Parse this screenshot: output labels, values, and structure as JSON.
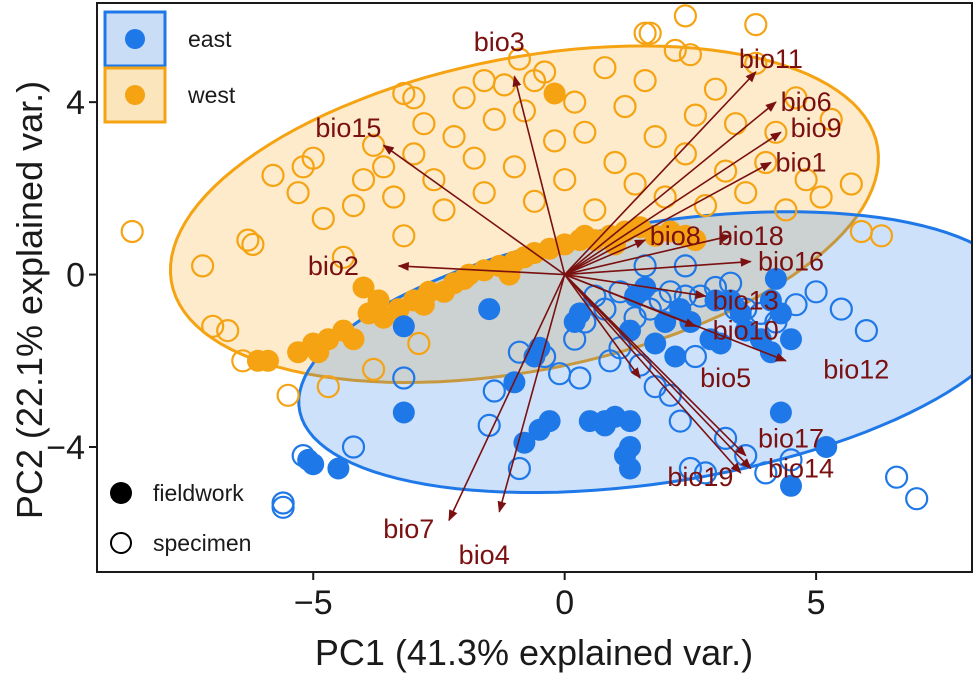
{
  "chart_data": {
    "type": "scatter",
    "subtype": "PCA biplot",
    "xlabel": "PC1 (41.3% explained var.)",
    "ylabel": "PC2 (22.1% explained var.)",
    "xlim": [
      -9.3,
      8.1
    ],
    "ylim": [
      -6.9,
      6.3
    ],
    "x_ticks": [
      {
        "value": -5,
        "label": "−5"
      },
      {
        "value": 0,
        "label": "0"
      },
      {
        "value": 5,
        "label": "5"
      }
    ],
    "y_ticks": [
      {
        "value": -4,
        "label": "−4"
      },
      {
        "value": 0,
        "label": "0"
      },
      {
        "value": 4,
        "label": "4"
      }
    ],
    "grid": false,
    "legend": {
      "placement": "top-left",
      "groups": [
        {
          "name": "east",
          "color": "#1f78e8"
        },
        {
          "name": "west",
          "color": "#f5a312"
        }
      ],
      "types": [
        {
          "name": "fieldwork",
          "shape": "filled-circle"
        },
        {
          "name": "specimen",
          "shape": "open-circle"
        }
      ]
    },
    "colors": {
      "east": "#1f78e8",
      "west": "#f5a312",
      "vector": "#7a1010",
      "east_fill": "#c9ddf7",
      "west_fill": "#fbe5bd",
      "overlap_fill": "#d3d0c3"
    },
    "ellipses": [
      {
        "group": "west",
        "cx": -0.8,
        "cy": 1.4,
        "rx": 7.2,
        "ry": 3.6,
        "angle_deg": 14
      },
      {
        "group": "east",
        "cx": 1.9,
        "cy": -1.8,
        "rx": 7.3,
        "ry": 3.0,
        "angle_deg": 11
      }
    ],
    "vectors": [
      {
        "name": "bio1",
        "x": 4.1,
        "y": 2.6,
        "lx": 4.7,
        "ly": 2.6
      },
      {
        "name": "bio2",
        "x": -3.3,
        "y": 0.2,
        "lx": -4.6,
        "ly": 0.2
      },
      {
        "name": "bio3",
        "x": -1.0,
        "y": 4.6,
        "lx": -1.3,
        "ly": 5.4
      },
      {
        "name": "bio4",
        "x": -1.3,
        "y": -5.5,
        "lx": -1.6,
        "ly": -6.5
      },
      {
        "name": "bio5",
        "x": 1.5,
        "y": -2.4,
        "lx": 3.2,
        "ly": -2.4
      },
      {
        "name": "bio6",
        "x": 4.2,
        "y": 4.0,
        "lx": 4.8,
        "ly": 4.0
      },
      {
        "name": "bio7",
        "x": -2.3,
        "y": -5.7,
        "lx": -3.1,
        "ly": -5.9
      },
      {
        "name": "bio8",
        "x": 1.6,
        "y": 0.8,
        "lx": 2.2,
        "ly": 0.9
      },
      {
        "name": "bio9",
        "x": 4.3,
        "y": 3.3,
        "lx": 5.0,
        "ly": 3.4
      },
      {
        "name": "bio10",
        "x": 2.6,
        "y": -1.2,
        "lx": 3.6,
        "ly": -1.3
      },
      {
        "name": "bio11",
        "x": 3.8,
        "y": 4.7,
        "lx": 4.1,
        "ly": 5.0
      },
      {
        "name": "bio12",
        "x": 4.4,
        "y": -2.0,
        "lx": 5.8,
        "ly": -2.2
      },
      {
        "name": "bio13",
        "x": 2.8,
        "y": -0.5,
        "lx": 3.6,
        "ly": -0.6
      },
      {
        "name": "bio14",
        "x": 3.7,
        "y": -4.5,
        "lx": 4.7,
        "ly": -4.5
      },
      {
        "name": "bio15",
        "x": -3.6,
        "y": 3.0,
        "lx": -4.3,
        "ly": 3.4
      },
      {
        "name": "bio16",
        "x": 3.7,
        "y": 0.3,
        "lx": 4.5,
        "ly": 0.3
      },
      {
        "name": "bio17",
        "x": 3.6,
        "y": -4.2,
        "lx": 4.5,
        "ly": -3.8
      },
      {
        "name": "bio18",
        "x": 3.3,
        "y": 0.9,
        "lx": 3.7,
        "ly": 0.9
      },
      {
        "name": "bio19",
        "x": 3.5,
        "y": -4.6,
        "lx": 2.7,
        "ly": -4.7
      }
    ],
    "points": {
      "east_fieldwork": [
        [
          -5,
          -4.4
        ],
        [
          -5.1,
          -4.3
        ],
        [
          -4.5,
          -4.5
        ],
        [
          -3.2,
          -3.2
        ],
        [
          -3.2,
          -1.2
        ],
        [
          -1.5,
          -0.8
        ],
        [
          -1,
          -2.5
        ],
        [
          -0.6,
          -1.9
        ],
        [
          -0.5,
          -3.6
        ],
        [
          -0.8,
          -3.9
        ],
        [
          -0.3,
          -3.4
        ],
        [
          -0.5,
          -1.7
        ],
        [
          0.2,
          -1.1
        ],
        [
          0.3,
          -0.9
        ],
        [
          0.5,
          -3.4
        ],
        [
          0.8,
          -3.4
        ],
        [
          1,
          -3.3
        ],
        [
          1.3,
          -3.4
        ],
        [
          1.3,
          -1.3
        ],
        [
          1.8,
          -1.6
        ],
        [
          1.4,
          -0.5
        ],
        [
          2,
          -1.1
        ],
        [
          2.3,
          -0.8
        ],
        [
          2.2,
          -1.9
        ],
        [
          2.5,
          -1.1
        ],
        [
          3,
          -0.6
        ],
        [
          3.1,
          -1.6
        ],
        [
          3.3,
          -0.6
        ],
        [
          3.6,
          -1.3
        ],
        [
          3.9,
          -1.5
        ],
        [
          4.1,
          -1.8
        ],
        [
          4.1,
          -0.6
        ],
        [
          4.2,
          -0.1
        ],
        [
          4.3,
          -0.9
        ],
        [
          4.5,
          -1.5
        ],
        [
          4.3,
          -3.2
        ],
        [
          5.2,
          -4
        ],
        [
          4.5,
          -4.9
        ],
        [
          1.3,
          -4
        ],
        [
          1.3,
          -4.5
        ],
        [
          1.2,
          -4.2
        ],
        [
          0.8,
          -3.5
        ],
        [
          2.9,
          -1.5
        ],
        [
          3.5,
          -0.9
        ],
        [
          1.6,
          -0.3
        ]
      ],
      "east_specimen": [
        [
          -5.6,
          -5.3
        ],
        [
          -5.6,
          -5.4
        ],
        [
          -5.2,
          -4.2
        ],
        [
          -4.2,
          -4
        ],
        [
          -3.2,
          -2.4
        ],
        [
          -1.4,
          -2.7
        ],
        [
          -0.9,
          -1.8
        ],
        [
          -0.4,
          -1.9
        ],
        [
          -0.1,
          -2.3
        ],
        [
          0.2,
          -1.5
        ],
        [
          0.4,
          -1.1
        ],
        [
          0.6,
          -0.5
        ],
        [
          0.8,
          -0.8
        ],
        [
          1.1,
          -0.4
        ],
        [
          1.4,
          -1
        ],
        [
          1.7,
          -0.8
        ],
        [
          1.9,
          -0.6
        ],
        [
          2.1,
          -0.4
        ],
        [
          2.4,
          -0.5
        ],
        [
          2.7,
          -0.5
        ],
        [
          3,
          -0.3
        ],
        [
          3.3,
          -0.2
        ],
        [
          3.6,
          -0.8
        ],
        [
          3.9,
          -0.9
        ],
        [
          4.2,
          -1.1
        ],
        [
          4.6,
          -0.7
        ],
        [
          5,
          -0.4
        ],
        [
          5.5,
          -0.8
        ],
        [
          6,
          -1.3
        ],
        [
          1.5,
          -2.1
        ],
        [
          1.8,
          -2.6
        ],
        [
          2.1,
          -2.8
        ],
        [
          2.3,
          -3.4
        ],
        [
          2.5,
          -4.5
        ],
        [
          2.8,
          -4.6
        ],
        [
          3.2,
          -3.8
        ],
        [
          3.6,
          -4.2
        ],
        [
          4,
          -4.6
        ],
        [
          4.5,
          -4.3
        ],
        [
          6.6,
          -4.7
        ],
        [
          7,
          -5.2
        ],
        [
          -0.9,
          -4.5
        ],
        [
          0.3,
          -2.4
        ],
        [
          -1.5,
          -3.5
        ],
        [
          0.9,
          -2
        ],
        [
          2.6,
          -1.9
        ],
        [
          1.1,
          -1.7
        ],
        [
          3.4,
          -0.8
        ],
        [
          1.6,
          0.2
        ],
        [
          2.4,
          0.2
        ]
      ],
      "west_fieldwork": [
        [
          -6.1,
          -2
        ],
        [
          -5.9,
          -2
        ],
        [
          -5.3,
          -1.8
        ],
        [
          -5,
          -1.6
        ],
        [
          -4.7,
          -1.5
        ],
        [
          -4.4,
          -1.3
        ],
        [
          -4.2,
          -1.5
        ],
        [
          -3.9,
          -0.9
        ],
        [
          -3.6,
          -1
        ],
        [
          -3.3,
          -0.8
        ],
        [
          -3,
          -0.6
        ],
        [
          -2.7,
          -0.4
        ],
        [
          -2.4,
          -0.4
        ],
        [
          -2,
          -0.1
        ],
        [
          -1.6,
          0.1
        ],
        [
          -1.3,
          0.2
        ],
        [
          -1,
          0.3
        ],
        [
          -0.6,
          0.5
        ],
        [
          -0.3,
          0.6
        ],
        [
          0,
          0.7
        ],
        [
          0.3,
          0.8
        ],
        [
          0.6,
          0.8
        ],
        [
          0.9,
          0.9
        ],
        [
          1.2,
          1
        ],
        [
          1.5,
          1.1
        ],
        [
          1.8,
          0.9
        ],
        [
          2.1,
          1
        ],
        [
          2.4,
          0.9
        ],
        [
          2.6,
          0.8
        ],
        [
          -0.2,
          4.2
        ],
        [
          -4,
          -0.3
        ],
        [
          -3.7,
          -0.6
        ],
        [
          -2.2,
          -0.2
        ],
        [
          -1.9,
          0
        ],
        [
          -4.9,
          -1.8
        ],
        [
          0.4,
          0.9
        ],
        [
          1,
          0.7
        ],
        [
          -2.8,
          -0.7
        ],
        [
          -1.1,
          0
        ],
        [
          -0.8,
          0.4
        ]
      ],
      "west_specimen": [
        [
          -8.6,
          1
        ],
        [
          -7.2,
          0.2
        ],
        [
          -6.3,
          0.8
        ],
        [
          -6.2,
          0.7
        ],
        [
          -5.8,
          2.3
        ],
        [
          -5.3,
          1.9
        ],
        [
          -5,
          2.7
        ],
        [
          -4.8,
          1.3
        ],
        [
          -4.4,
          0.4
        ],
        [
          -4.2,
          1.6
        ],
        [
          -4,
          2.2
        ],
        [
          -3.8,
          3
        ],
        [
          -3.6,
          2.5
        ],
        [
          -3.4,
          1.8
        ],
        [
          -3.2,
          0.9
        ],
        [
          -3,
          2.8
        ],
        [
          -2.8,
          3.5
        ],
        [
          -2.6,
          2.2
        ],
        [
          -2.4,
          1.5
        ],
        [
          -2.2,
          3.2
        ],
        [
          -2,
          4.1
        ],
        [
          -1.8,
          2.7
        ],
        [
          -1.6,
          1.9
        ],
        [
          -1.4,
          3.6
        ],
        [
          -1.2,
          4.4
        ],
        [
          -1,
          2.5
        ],
        [
          -0.8,
          3.8
        ],
        [
          -0.6,
          1.7
        ],
        [
          -0.4,
          4.7
        ],
        [
          -0.2,
          3.1
        ],
        [
          0,
          2.2
        ],
        [
          0.2,
          4
        ],
        [
          0.4,
          3.3
        ],
        [
          0.6,
          1.5
        ],
        [
          0.8,
          4.8
        ],
        [
          1,
          2.6
        ],
        [
          1.2,
          3.9
        ],
        [
          1.4,
          2.1
        ],
        [
          1.6,
          4.5
        ],
        [
          1.8,
          3.2
        ],
        [
          2,
          1.8
        ],
        [
          2.2,
          5.2
        ],
        [
          2.4,
          2.8
        ],
        [
          2.6,
          3.7
        ],
        [
          2.8,
          1.6
        ],
        [
          3,
          4.3
        ],
        [
          3.2,
          2.4
        ],
        [
          3.4,
          3.5
        ],
        [
          3.6,
          1.9
        ],
        [
          3.8,
          4.9
        ],
        [
          4,
          2.6
        ],
        [
          4.2,
          3.3
        ],
        [
          4.4,
          1.5
        ],
        [
          4.6,
          4.1
        ],
        [
          4.8,
          2.2
        ],
        [
          5.1,
          1.8
        ],
        [
          5.3,
          3.6
        ],
        [
          5.7,
          2.1
        ],
        [
          5.9,
          1
        ],
        [
          6.3,
          0.9
        ],
        [
          2.4,
          6
        ],
        [
          3.8,
          5.8
        ],
        [
          1.7,
          5.6
        ],
        [
          1.6,
          5.6
        ],
        [
          2.5,
          5.1
        ],
        [
          -0.9,
          5
        ],
        [
          -0.6,
          4.5
        ],
        [
          -1.6,
          4.5
        ],
        [
          -3.2,
          4.2
        ],
        [
          -3,
          4.1
        ],
        [
          -5.2,
          2.5
        ],
        [
          -6.7,
          -1.3
        ],
        [
          -5.5,
          -2.8
        ],
        [
          -4.7,
          -2.6
        ],
        [
          -3.8,
          -2.2
        ],
        [
          -2.9,
          -1.6
        ],
        [
          -6.4,
          -2
        ],
        [
          -7,
          -1.2
        ]
      ]
    }
  }
}
